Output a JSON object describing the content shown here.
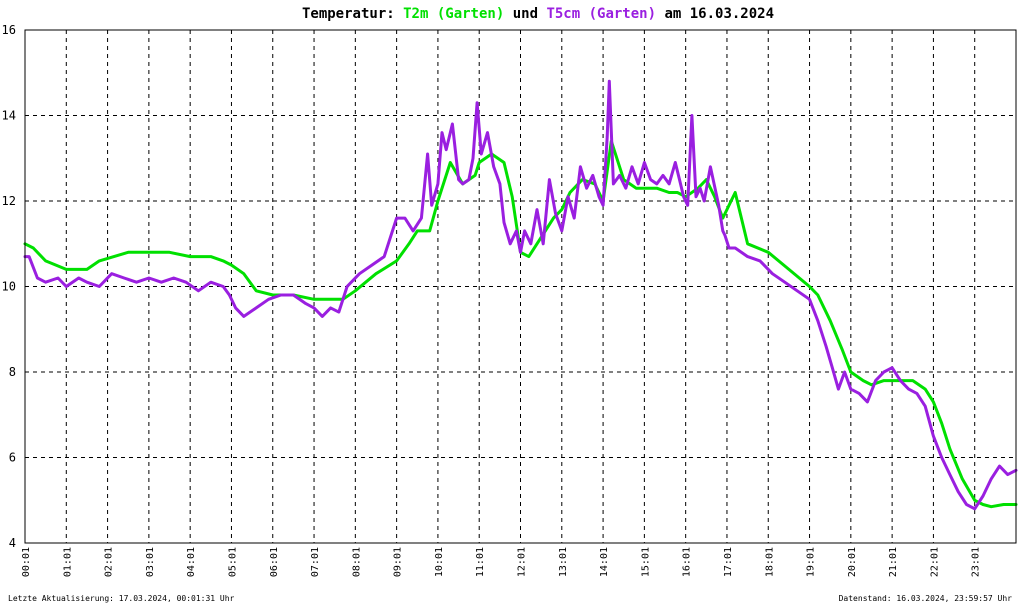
{
  "colors": {
    "background": "#ffffff",
    "axis": "#000000",
    "grid": "#000000",
    "t2m": "#00e000",
    "t5cm": "#9a1fe0",
    "text": "#000000"
  },
  "title": {
    "prefix": "Temperatur: ",
    "series1": "T2m (Garten)",
    "middle": " und ",
    "series2": "T5cm (Garten)",
    "suffix": " am 16.03.2024"
  },
  "footer": {
    "left": "Letzte Aktualisierung: 17.03.2024, 00:01:31 Uhr",
    "right": "Datenstand: 16.03.2024, 23:59:57 Uhr"
  },
  "chart_data": {
    "type": "line",
    "title": "Temperatur: T2m (Garten) und T5cm (Garten) am 16.03.2024",
    "xlabel": "",
    "ylabel": "",
    "x_unit": "hours",
    "xlim": [
      0,
      24
    ],
    "ylim": [
      4,
      16
    ],
    "grid": true,
    "legend": "in title",
    "y_ticks": [
      "4",
      "6",
      "8",
      "10",
      "12",
      "14",
      "16"
    ],
    "x_ticks": [
      "00:01",
      "01:01",
      "02:01",
      "03:01",
      "04:01",
      "05:01",
      "06:01",
      "07:01",
      "08:01",
      "09:01",
      "10:01",
      "11:01",
      "12:01",
      "13:01",
      "14:01",
      "15:01",
      "16:01",
      "17:01",
      "18:01",
      "19:01",
      "20:01",
      "21:01",
      "22:01",
      "23:01"
    ],
    "series": [
      {
        "name": "T2m (Garten)",
        "color": "#00e000",
        "x": [
          0.0,
          0.2,
          0.5,
          1.0,
          1.5,
          1.8,
          2.5,
          3.0,
          3.5,
          4.0,
          4.5,
          4.8,
          5.0,
          5.3,
          5.6,
          6.0,
          6.5,
          7.0,
          7.5,
          7.7,
          8.0,
          8.5,
          9.0,
          9.3,
          9.5,
          9.8,
          10.0,
          10.3,
          10.6,
          10.9,
          11.0,
          11.3,
          11.6,
          11.8,
          12.0,
          12.2,
          12.4,
          12.6,
          12.8,
          13.0,
          13.2,
          13.5,
          13.8,
          14.0,
          14.2,
          14.5,
          14.8,
          15.0,
          15.3,
          15.6,
          15.8,
          16.0,
          16.3,
          16.5,
          16.7,
          16.9,
          17.2,
          17.5,
          18.0,
          18.5,
          19.0,
          19.2,
          19.5,
          19.8,
          20.0,
          20.3,
          20.5,
          20.8,
          21.0,
          21.5,
          21.8,
          22.0,
          22.2,
          22.4,
          22.7,
          23.0,
          23.2,
          23.4,
          23.7,
          24.0
        ],
        "y": [
          11.0,
          10.9,
          10.6,
          10.4,
          10.4,
          10.6,
          10.8,
          10.8,
          10.8,
          10.7,
          10.7,
          10.6,
          10.5,
          10.3,
          9.9,
          9.8,
          9.8,
          9.7,
          9.7,
          9.7,
          9.9,
          10.3,
          10.6,
          11.0,
          11.3,
          11.3,
          12.0,
          12.9,
          12.4,
          12.6,
          12.9,
          13.1,
          12.9,
          12.1,
          10.8,
          10.7,
          11.0,
          11.3,
          11.6,
          11.8,
          12.2,
          12.5,
          12.4,
          12.0,
          13.4,
          12.5,
          12.3,
          12.3,
          12.3,
          12.2,
          12.2,
          12.1,
          12.3,
          12.5,
          12.1,
          11.6,
          12.2,
          11.0,
          10.8,
          10.4,
          10.0,
          9.8,
          9.2,
          8.5,
          8.0,
          7.8,
          7.7,
          7.8,
          7.8,
          7.8,
          7.6,
          7.3,
          6.8,
          6.2,
          5.5,
          5.0,
          4.9,
          4.85,
          4.9,
          4.9
        ]
      },
      {
        "name": "T5cm (Garten)",
        "color": "#9a1fe0",
        "x": [
          0.0,
          0.1,
          0.3,
          0.5,
          0.8,
          1.0,
          1.3,
          1.5,
          1.8,
          2.1,
          2.4,
          2.7,
          3.0,
          3.3,
          3.6,
          3.9,
          4.2,
          4.5,
          4.8,
          4.95,
          5.1,
          5.3,
          5.6,
          5.9,
          6.2,
          6.5,
          6.8,
          7.0,
          7.2,
          7.4,
          7.6,
          7.8,
          8.1,
          8.4,
          8.7,
          9.0,
          9.2,
          9.4,
          9.6,
          9.75,
          9.85,
          10.0,
          10.1,
          10.2,
          10.35,
          10.5,
          10.6,
          10.75,
          10.85,
          10.95,
          11.05,
          11.2,
          11.35,
          11.5,
          11.6,
          11.75,
          11.9,
          12.0,
          12.1,
          12.25,
          12.4,
          12.55,
          12.7,
          12.85,
          13.0,
          13.15,
          13.3,
          13.45,
          13.6,
          13.75,
          13.9,
          14.0,
          14.1,
          14.15,
          14.25,
          14.4,
          14.55,
          14.7,
          14.85,
          15.0,
          15.15,
          15.3,
          15.45,
          15.6,
          15.75,
          15.85,
          15.95,
          16.05,
          16.15,
          16.25,
          16.35,
          16.45,
          16.6,
          16.8,
          16.9,
          16.95,
          17.05,
          17.2,
          17.5,
          17.8,
          18.1,
          18.4,
          18.7,
          19.0,
          19.2,
          19.4,
          19.55,
          19.7,
          19.85,
          20.0,
          20.2,
          20.4,
          20.6,
          20.8,
          21.0,
          21.2,
          21.4,
          21.6,
          21.8,
          22.0,
          22.2,
          22.4,
          22.6,
          22.8,
          23.0,
          23.2,
          23.4,
          23.6,
          23.8,
          24.0
        ],
        "y": [
          10.7,
          10.7,
          10.2,
          10.1,
          10.2,
          10.0,
          10.2,
          10.1,
          10.0,
          10.3,
          10.2,
          10.1,
          10.2,
          10.1,
          10.2,
          10.1,
          9.9,
          10.1,
          10.0,
          9.8,
          9.5,
          9.3,
          9.5,
          9.7,
          9.8,
          9.8,
          9.6,
          9.5,
          9.3,
          9.5,
          9.4,
          10.0,
          10.3,
          10.5,
          10.7,
          11.6,
          11.6,
          11.3,
          11.6,
          13.1,
          11.9,
          12.4,
          13.6,
          13.2,
          13.8,
          12.5,
          12.4,
          12.5,
          13.0,
          14.3,
          13.1,
          13.6,
          12.8,
          12.4,
          11.5,
          11.0,
          11.3,
          10.8,
          11.3,
          11.0,
          11.8,
          11.0,
          12.5,
          11.7,
          11.3,
          12.1,
          11.6,
          12.8,
          12.3,
          12.6,
          12.1,
          11.9,
          13.5,
          14.8,
          12.4,
          12.6,
          12.3,
          12.8,
          12.4,
          12.9,
          12.5,
          12.4,
          12.6,
          12.4,
          12.9,
          12.5,
          12.1,
          11.9,
          14.0,
          12.1,
          12.3,
          12.0,
          12.8,
          11.9,
          11.3,
          11.2,
          10.9,
          10.9,
          10.7,
          10.6,
          10.3,
          10.1,
          9.9,
          9.7,
          9.2,
          8.6,
          8.1,
          7.6,
          8.0,
          7.6,
          7.5,
          7.3,
          7.8,
          8.0,
          8.1,
          7.8,
          7.6,
          7.5,
          7.2,
          6.5,
          6.0,
          5.6,
          5.2,
          4.9,
          4.8,
          5.1,
          5.5,
          5.8,
          5.6,
          5.7
        ]
      }
    ]
  }
}
